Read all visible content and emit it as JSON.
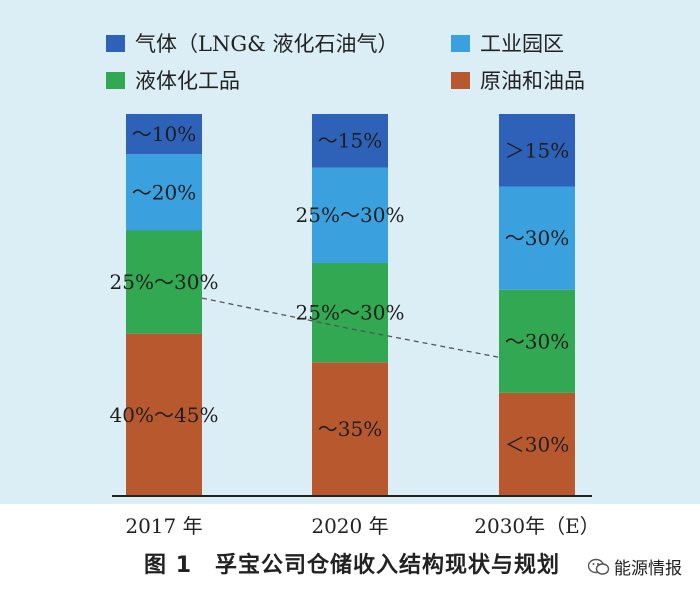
{
  "chart_data": {
    "type": "bar",
    "stacked": true,
    "categories": [
      "2017 年",
      "2020 年",
      "2030年（E）"
    ],
    "series": [
      {
        "name": "原油和油品",
        "color": "#b8582e",
        "values": [
          42.5,
          35,
          27
        ],
        "labels": [
          "40%～45%",
          "～35%",
          "＜30%"
        ]
      },
      {
        "name": "液体化工品",
        "color": "#32a852",
        "values": [
          27,
          26,
          27
        ],
        "labels": [
          "25%～30%",
          "25%～30%",
          "～30%"
        ]
      },
      {
        "name": "工业园区",
        "color": "#3aa0de",
        "values": [
          20,
          25,
          27
        ],
        "labels": [
          "～20%",
          "25%～30%",
          "～30%"
        ]
      },
      {
        "name": "气体（LNG& 液化石油气）",
        "color": "#2e62b8",
        "values": [
          10.5,
          14,
          19
        ],
        "labels": [
          "～10%",
          "～15%",
          "＞15%"
        ]
      }
    ],
    "trend_line": {
      "style": "dashed",
      "series": "液体化工品"
    },
    "ylim": [
      0,
      100
    ],
    "legend_position": "top"
  },
  "caption": "图 1　孚宝公司仓储收入结构现状与规划",
  "watermark": "能源情报"
}
